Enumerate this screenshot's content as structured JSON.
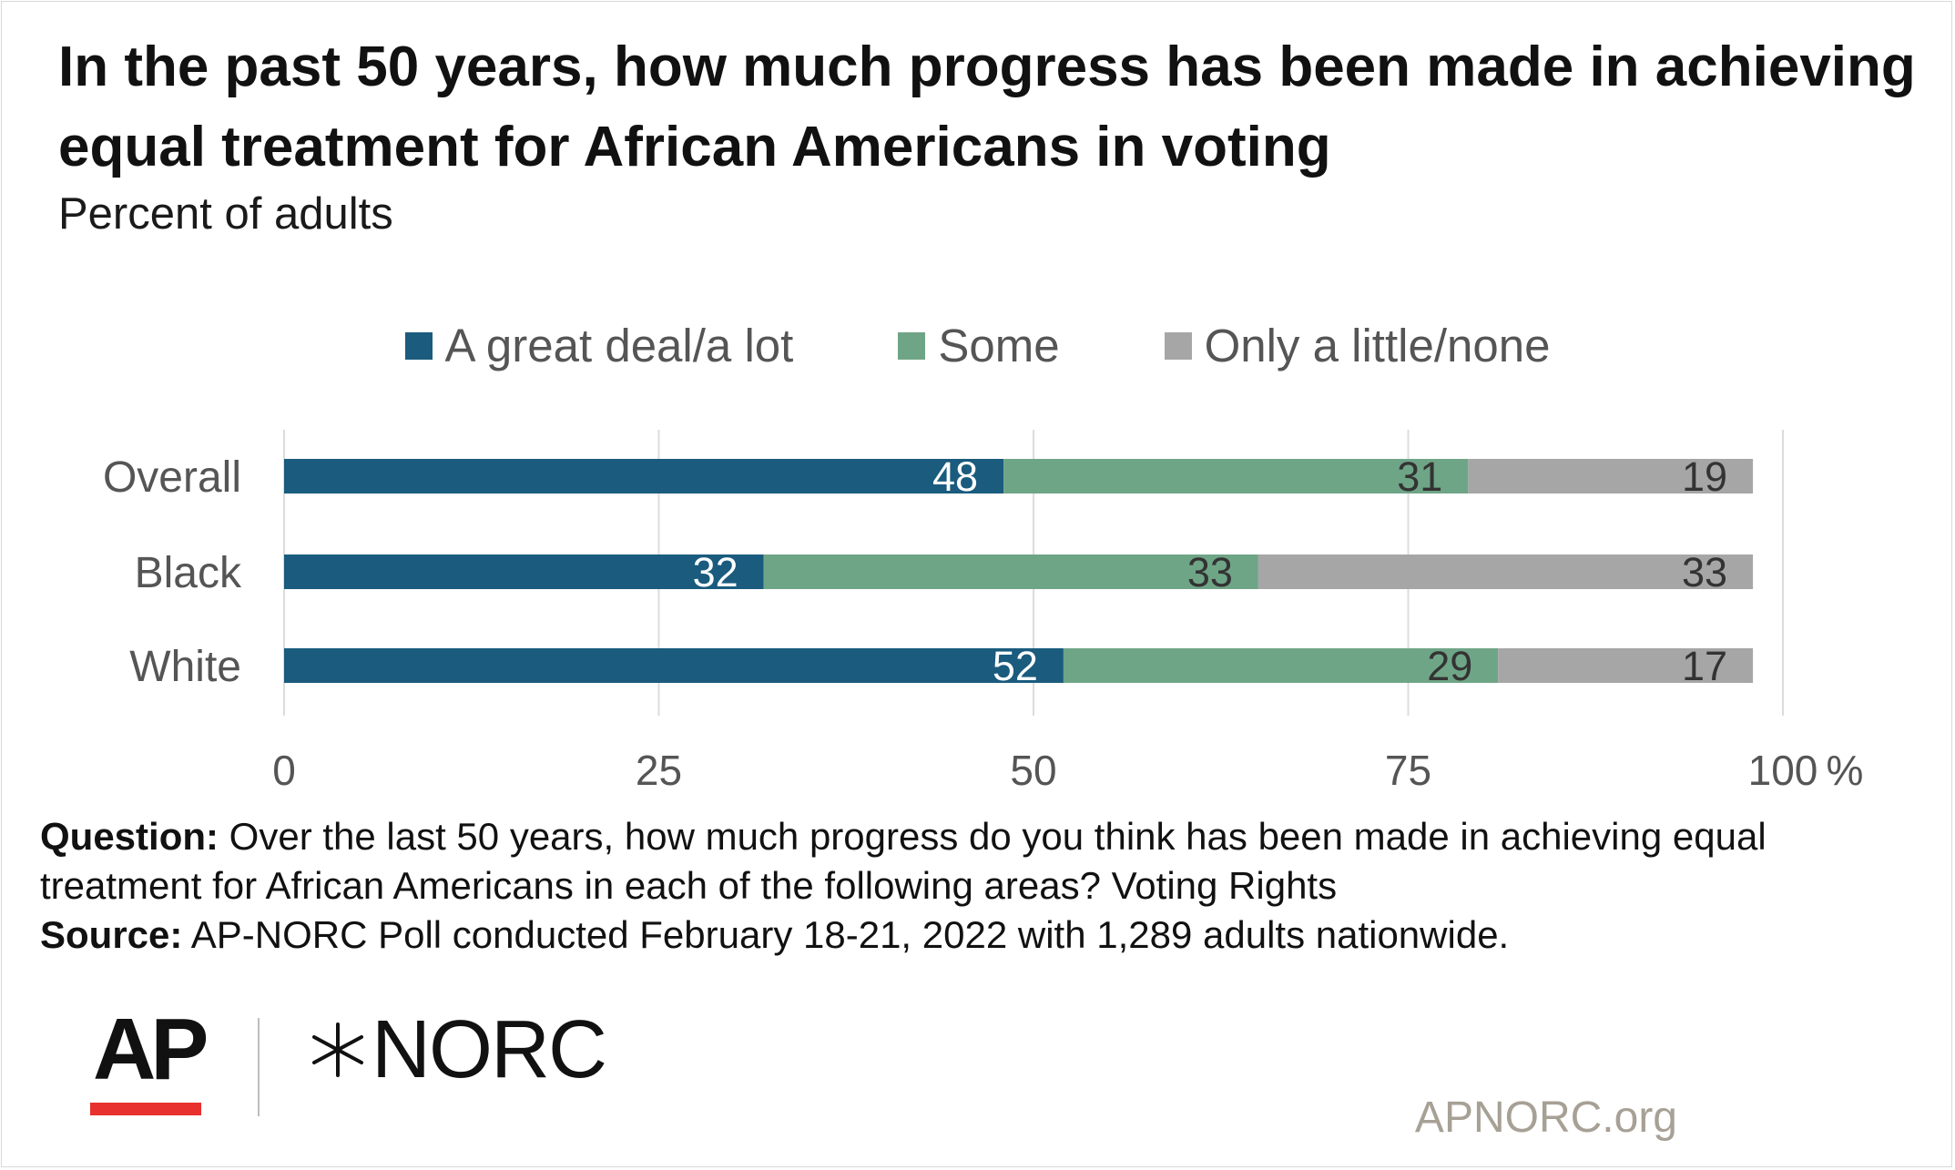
{
  "header": {
    "title": "In the past 50 years, how much progress has been made in achieving equal treatment for African Americans in voting",
    "subtitle": "Percent of adults"
  },
  "legend": [
    {
      "label": "A great deal/a lot",
      "color": "#1a5b7e"
    },
    {
      "label": "Some",
      "color": "#6fa587"
    },
    {
      "label": "Only a little/none",
      "color": "#a6a6a6"
    }
  ],
  "chart_data": {
    "type": "bar",
    "orientation": "horizontal",
    "stacked": true,
    "title": "In the past 50 years, how much progress has been made in achieving equal treatment for African Americans in voting",
    "subtitle": "Percent of adults",
    "categories": [
      "Overall",
      "Black",
      "White"
    ],
    "series": [
      {
        "name": "A great deal/a lot",
        "color": "#1a5b7e",
        "label_color": "#ffffff",
        "values": [
          48,
          32,
          52
        ]
      },
      {
        "name": "Some",
        "color": "#6fa587",
        "label_color": "#333333",
        "values": [
          31,
          33,
          29
        ]
      },
      {
        "name": "Only a little/none",
        "color": "#a6a6a6",
        "label_color": "#333333",
        "values": [
          19,
          33,
          17
        ]
      }
    ],
    "xlim": [
      0,
      100
    ],
    "xticks": [
      0,
      25,
      50,
      75,
      100
    ],
    "xtick_labels": [
      "0",
      "25",
      "50",
      "75",
      "100"
    ],
    "x_unit": "%",
    "grid": true,
    "legend_position": "top-center"
  },
  "footnote": {
    "question_label": "Question:",
    "question_text": "Over the last 50 years, how much progress do you think has been made in achieving equal treatment for African Americans in each of the following areas? Voting Rights",
    "source_label": "Source:",
    "source_text": "AP-NORC Poll conducted February 18-21, 2022 with 1,289 adults nationwide."
  },
  "branding": {
    "ap_logo": "AP",
    "ap_accent_color": "#e8302f",
    "norc_logo": "NORC",
    "norc_icon": "star-burst-icon",
    "site": "APNORC.org"
  }
}
